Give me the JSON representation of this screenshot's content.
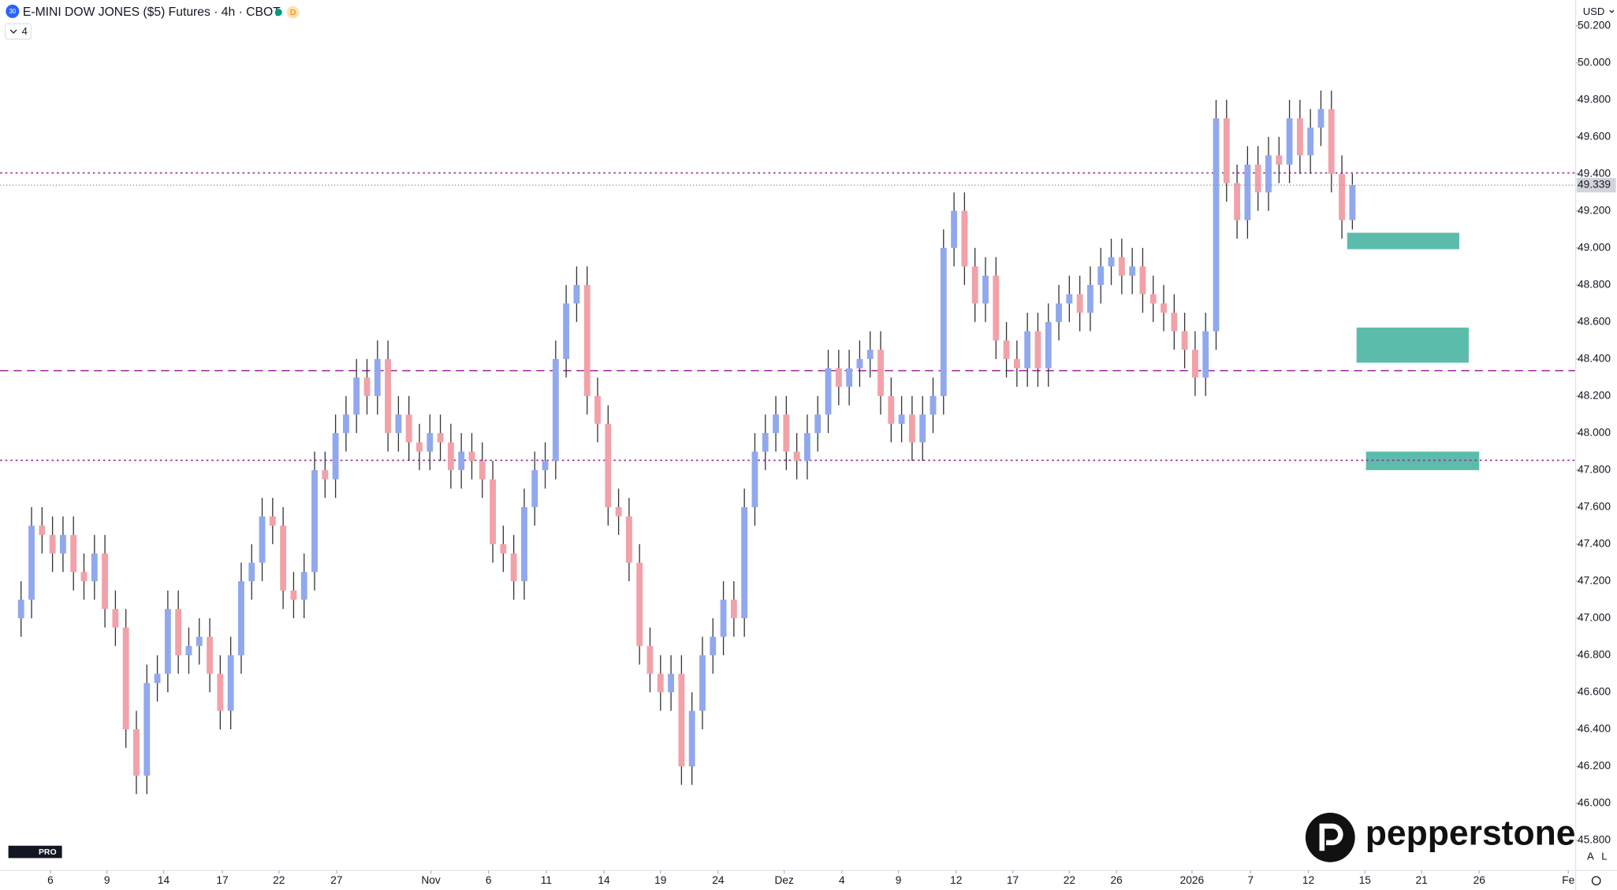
{
  "ui": {
    "symbol_icon": "30",
    "badge": "D",
    "interval_toggle": "4",
    "currency": "USD",
    "brand": "pepperstone",
    "tv_badge": "PRO"
  },
  "chart_data": {
    "type": "candlestick",
    "title": "E-MINI DOW JONES ($5) Futures · 4h · CBOT",
    "up_color": "#91a8ee",
    "down_color": "#f2a1a8",
    "wick_color": "#333333",
    "x": [
      0,
      1,
      2,
      3,
      4,
      5,
      6,
      7,
      8,
      9,
      10,
      11,
      12,
      13,
      14,
      15,
      16,
      17,
      18,
      19,
      20,
      21,
      22,
      23,
      24,
      25,
      26,
      27,
      28,
      29,
      30,
      31,
      32,
      33,
      34,
      35,
      36,
      37,
      38,
      39,
      40,
      41,
      42,
      43,
      44,
      45,
      46,
      47,
      48,
      49,
      50,
      51,
      52,
      53,
      54,
      55,
      56,
      57,
      58,
      59,
      60,
      61,
      62,
      63,
      64,
      65,
      66,
      67,
      68,
      69,
      70,
      71,
      72,
      73,
      74,
      75,
      76,
      77,
      78,
      79,
      80,
      81,
      82,
      83,
      84,
      85,
      86,
      87,
      88,
      89,
      90,
      91,
      92,
      93,
      94,
      95,
      96,
      97,
      98,
      99,
      100,
      101,
      102,
      103,
      104,
      105,
      106,
      107,
      108,
      109,
      110,
      111,
      112,
      113,
      114,
      115,
      116,
      117,
      118,
      119,
      120,
      121,
      122,
      123,
      124,
      125,
      126,
      127
    ],
    "open": [
      47000,
      47100,
      47500,
      47450,
      47350,
      47450,
      47250,
      47200,
      47350,
      47050,
      46950,
      46400,
      46150,
      46650,
      46700,
      47050,
      46800,
      46850,
      46900,
      46700,
      46500,
      46800,
      47200,
      47300,
      47550,
      47500,
      47150,
      47100,
      47250,
      47800,
      47750,
      48000,
      48100,
      48300,
      48200,
      48400,
      48000,
      48100,
      47950,
      47900,
      48000,
      47950,
      47800,
      47900,
      47850,
      47750,
      47400,
      47350,
      47200,
      47600,
      47800,
      47850,
      48400,
      48700,
      48800,
      48200,
      48050,
      47600,
      47550,
      47300,
      46850,
      46700,
      46600,
      46700,
      46200,
      46500,
      46800,
      46900,
      47100,
      47000,
      47600,
      47900,
      48000,
      48100,
      47900,
      47850,
      48000,
      48100,
      48350,
      48250,
      48350,
      48400,
      48450,
      48200,
      48050,
      48100,
      47950,
      48100,
      48200,
      49000,
      49200,
      48900,
      48700,
      48850,
      48500,
      48400,
      48350,
      48550,
      48350,
      48600,
      48700,
      48750,
      48650,
      48800,
      48900,
      48950,
      48850,
      48900,
      48750,
      48700,
      48650,
      48550,
      48450,
      48300,
      48550,
      49700,
      49350,
      49150,
      49450,
      49300,
      49500,
      49450,
      49700,
      49500,
      49650,
      49750,
      49400,
      49150
    ],
    "high": [
      47200,
      47600,
      47600,
      47550,
      47550,
      47550,
      47350,
      47450,
      47450,
      47150,
      47050,
      46500,
      46750,
      46800,
      47150,
      47150,
      46950,
      47000,
      47000,
      46800,
      46900,
      47300,
      47400,
      47650,
      47650,
      47600,
      47250,
      47350,
      47900,
      47900,
      48100,
      48200,
      48400,
      48400,
      48500,
      48500,
      48200,
      48200,
      48050,
      48100,
      48100,
      48050,
      48000,
      48000,
      47950,
      47850,
      47500,
      47450,
      47700,
      47900,
      47950,
      48500,
      48800,
      48900,
      48900,
      48300,
      48150,
      47700,
      47650,
      47400,
      46950,
      46800,
      46800,
      46800,
      46600,
      46900,
      47000,
      47200,
      47200,
      47700,
      48000,
      48100,
      48200,
      48200,
      48000,
      48100,
      48200,
      48450,
      48450,
      48450,
      48500,
      48550,
      48550,
      48300,
      48200,
      48200,
      48200,
      48300,
      49100,
      49300,
      49300,
      49000,
      48950,
      48950,
      48600,
      48500,
      48650,
      48650,
      48700,
      48800,
      48850,
      48850,
      48900,
      49000,
      49050,
      49050,
      49000,
      49000,
      48850,
      48800,
      48750,
      48650,
      48550,
      48650,
      49800,
      49800,
      49450,
      49550,
      49550,
      49600,
      49600,
      49800,
      49800,
      49750,
      49850,
      49850,
      49500,
      49400
    ],
    "low": [
      46900,
      47000,
      47350,
      47250,
      47250,
      47150,
      47100,
      47100,
      46950,
      46850,
      46300,
      46050,
      46050,
      46550,
      46600,
      46700,
      46700,
      46750,
      46600,
      46400,
      46400,
      46700,
      47100,
      47200,
      47400,
      47050,
      47000,
      47000,
      47150,
      47650,
      47650,
      47900,
      48000,
      48100,
      48100,
      47900,
      47900,
      47850,
      47800,
      47800,
      47850,
      47700,
      47700,
      47750,
      47650,
      47300,
      47250,
      47100,
      47100,
      47500,
      47700,
      47750,
      48300,
      48600,
      48100,
      47950,
      47500,
      47450,
      47200,
      46750,
      46600,
      46500,
      46500,
      46100,
      46100,
      46400,
      46700,
      46800,
      46900,
      46900,
      47500,
      47800,
      47900,
      47800,
      47750,
      47750,
      47900,
      48000,
      48150,
      48150,
      48250,
      48300,
      48100,
      47950,
      47950,
      47850,
      47850,
      48000,
      48100,
      48900,
      48800,
      48600,
      48600,
      48400,
      48300,
      48250,
      48250,
      48250,
      48250,
      48500,
      48600,
      48550,
      48550,
      48700,
      48800,
      48750,
      48750,
      48650,
      48600,
      48550,
      48450,
      48350,
      48200,
      48200,
      48450,
      49250,
      49050,
      49050,
      49200,
      49200,
      49350,
      49350,
      49400,
      49400,
      49550,
      49300,
      49050,
      49100
    ],
    "close": [
      47100,
      47500,
      47450,
      47350,
      47450,
      47250,
      47200,
      47350,
      47050,
      46950,
      46400,
      46150,
      46650,
      46700,
      47050,
      46800,
      46850,
      46900,
      46700,
      46500,
      46800,
      47200,
      47300,
      47550,
      47500,
      47150,
      47100,
      47250,
      47800,
      47750,
      48000,
      48100,
      48300,
      48200,
      48400,
      48000,
      48100,
      47950,
      47900,
      48000,
      47950,
      47800,
      47900,
      47850,
      47750,
      47400,
      47350,
      47200,
      47600,
      47800,
      47850,
      48400,
      48700,
      48800,
      48200,
      48050,
      47600,
      47550,
      47300,
      46850,
      46700,
      46600,
      46700,
      46200,
      46500,
      46800,
      46900,
      47100,
      47000,
      47600,
      47900,
      48000,
      48100,
      47900,
      47850,
      48000,
      48100,
      48350,
      48250,
      48350,
      48400,
      48450,
      48200,
      48050,
      48100,
      47950,
      48100,
      48200,
      49000,
      49200,
      48900,
      48700,
      48850,
      48500,
      48400,
      48350,
      48550,
      48350,
      48600,
      48700,
      48750,
      48650,
      48800,
      48900,
      48950,
      48850,
      48900,
      48750,
      48700,
      48650,
      48550,
      48450,
      48300,
      48550,
      49700,
      49350,
      49150,
      49450,
      49300,
      49500,
      49450,
      49700,
      49500,
      49650,
      49750,
      49400,
      49150,
      49339
    ],
    "xlim": [
      -2,
      148.3
    ],
    "ylim": [
      45638,
      50339
    ],
    "xticks": [
      {
        "value": 2.8,
        "label": "6"
      },
      {
        "value": 8.2,
        "label": "9"
      },
      {
        "value": 13.6,
        "label": "14"
      },
      {
        "value": 19.2,
        "label": "17"
      },
      {
        "value": 24.6,
        "label": "22"
      },
      {
        "value": 30.1,
        "label": "27"
      },
      {
        "value": 39.1,
        "label": "Nov"
      },
      {
        "value": 44.6,
        "label": "6"
      },
      {
        "value": 50.1,
        "label": "11"
      },
      {
        "value": 55.6,
        "label": "14"
      },
      {
        "value": 61.0,
        "label": "19"
      },
      {
        "value": 66.5,
        "label": "24"
      },
      {
        "value": 72.8,
        "label": "Dez"
      },
      {
        "value": 78.3,
        "label": "4"
      },
      {
        "value": 83.7,
        "label": "9"
      },
      {
        "value": 89.2,
        "label": "12"
      },
      {
        "value": 94.6,
        "label": "17"
      },
      {
        "value": 100.0,
        "label": "22"
      },
      {
        "value": 104.5,
        "label": "26"
      },
      {
        "value": 111.7,
        "label": "2026"
      },
      {
        "value": 117.3,
        "label": "7"
      },
      {
        "value": 122.8,
        "label": "12"
      },
      {
        "value": 128.2,
        "label": "15"
      },
      {
        "value": 133.6,
        "label": "21"
      },
      {
        "value": 139.1,
        "label": "26"
      },
      {
        "value": 147.6,
        "label": "Fe"
      }
    ],
    "yticks": [
      {
        "value": 45800,
        "label": "45.800"
      },
      {
        "value": 46000,
        "label": "46.000"
      },
      {
        "value": 46200,
        "label": "46.200"
      },
      {
        "value": 46400,
        "label": "46.400"
      },
      {
        "value": 46600,
        "label": "46.600"
      },
      {
        "value": 46800,
        "label": "46.800"
      },
      {
        "value": 47000,
        "label": "47.000"
      },
      {
        "value": 47200,
        "label": "47.200"
      },
      {
        "value": 47400,
        "label": "47.400"
      },
      {
        "value": 47600,
        "label": "47.600"
      },
      {
        "value": 47800,
        "label": "47.800"
      },
      {
        "value": 48000,
        "label": "48.000"
      },
      {
        "value": 48200,
        "label": "48.200"
      },
      {
        "value": 48400,
        "label": "48.400"
      },
      {
        "value": 48600,
        "label": "48.600"
      },
      {
        "value": 48800,
        "label": "48.800"
      },
      {
        "value": 49000,
        "label": "49.000"
      },
      {
        "value": 49200,
        "label": "49.200"
      },
      {
        "value": 49400,
        "label": "49.400"
      },
      {
        "value": 49600,
        "label": "49.600"
      },
      {
        "value": 49800,
        "label": "49.800"
      },
      {
        "value": 50000,
        "label": "50.000"
      },
      {
        "value": 50200,
        "label": "50.200"
      }
    ],
    "grid": false,
    "current_price": {
      "value": 49339,
      "label": "49.339"
    },
    "hlines": [
      {
        "value": 49405,
        "color": "#a020a0",
        "dash": "2 3"
      },
      {
        "value": 48337,
        "color": "#a020a0",
        "dash": "8 5"
      },
      {
        "value": 47853,
        "color": "#a020a0",
        "dash": "2 3"
      }
    ],
    "zones": [
      {
        "x0": 126.5,
        "x1": 137.2,
        "y0": 48993,
        "y1": 49082,
        "color": "#5cbcab"
      },
      {
        "x0": 127.4,
        "x1": 138.1,
        "y0": 48380,
        "y1": 48570,
        "color": "#5cbcab"
      },
      {
        "x0": 128.3,
        "x1": 139.1,
        "y0": 47800,
        "y1": 47900,
        "color": "#5cbcab"
      }
    ]
  }
}
